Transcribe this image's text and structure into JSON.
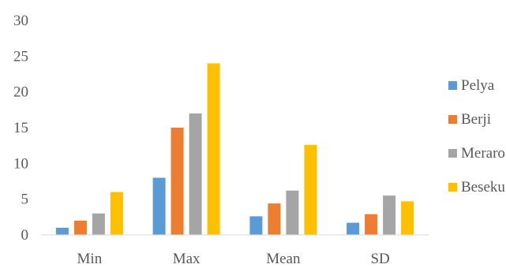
{
  "chart_data": {
    "type": "bar",
    "categories": [
      "Min",
      "Max",
      "Mean",
      "SD"
    ],
    "series": [
      {
        "name": "Pelya",
        "color": "#5b9bd5",
        "values": [
          1,
          8,
          2.6,
          1.7
        ]
      },
      {
        "name": "Berji",
        "color": "#ed7d31",
        "values": [
          2,
          15,
          4.4,
          2.9
        ]
      },
      {
        "name": "Meraro",
        "color": "#a5a5a5",
        "values": [
          3,
          17,
          6.2,
          5.5
        ]
      },
      {
        "name": "Beseku",
        "color": "#ffc000",
        "values": [
          6,
          24,
          12.6,
          4.7
        ]
      }
    ],
    "yticks": [
      "0",
      "5",
      "10",
      "15",
      "20",
      "25",
      "30"
    ],
    "ylim": [
      0,
      30
    ],
    "title": "",
    "xlabel": "",
    "ylabel": "",
    "grid": false,
    "legend_position": "right"
  }
}
